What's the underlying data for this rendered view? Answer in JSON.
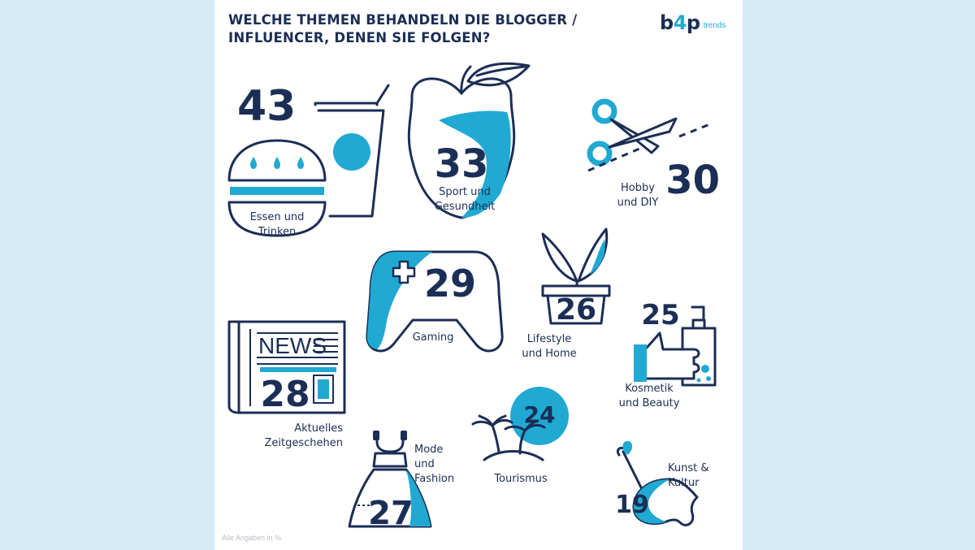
{
  "header": {
    "title_line1": "WELCHE THEMEN BEHANDELN DIE BLOGGER /",
    "title_line2": "INFLUENCER, DENEN SIE FOLGEN?"
  },
  "logo": {
    "part1": "b",
    "part2": "4",
    "part3": "p",
    "sub": "trends"
  },
  "footnote": "Alle Angaben in %",
  "icons": {
    "newspaper_word": "NEWS",
    "food": "burger-and-drink-icon",
    "sport": "apple-icon",
    "hobby": "scissors-icon",
    "gaming": "gamepad-icon",
    "lifestyle": "plant-pot-icon",
    "news": "newspaper-icon",
    "beauty": "lotion-and-hand-icon",
    "fashion": "dress-icon",
    "travel": "palm-island-icon",
    "art": "palette-icon"
  },
  "colors": {
    "navy": "#1b2e55",
    "accent": "#20a9d3",
    "background": "#d6e9f6"
  },
  "chart_data": {
    "type": "table",
    "unit": "%",
    "categories": [
      [
        "Essen und",
        "Trinken"
      ],
      [
        "Sport und",
        "Gesundheit"
      ],
      [
        "Hobby",
        "und DIY"
      ],
      [
        "Gaming"
      ],
      [
        "Aktuelles",
        "Zeitgeschehen"
      ],
      [
        "Mode",
        "und",
        "Fashion"
      ],
      [
        "Lifestyle",
        "und Home"
      ],
      [
        "Kosmetik",
        "und Beauty"
      ],
      [
        "Tourismus"
      ],
      [
        "Kunst &",
        "Kultur"
      ]
    ],
    "values": [
      43,
      33,
      30,
      29,
      28,
      27,
      26,
      25,
      24,
      19
    ]
  }
}
